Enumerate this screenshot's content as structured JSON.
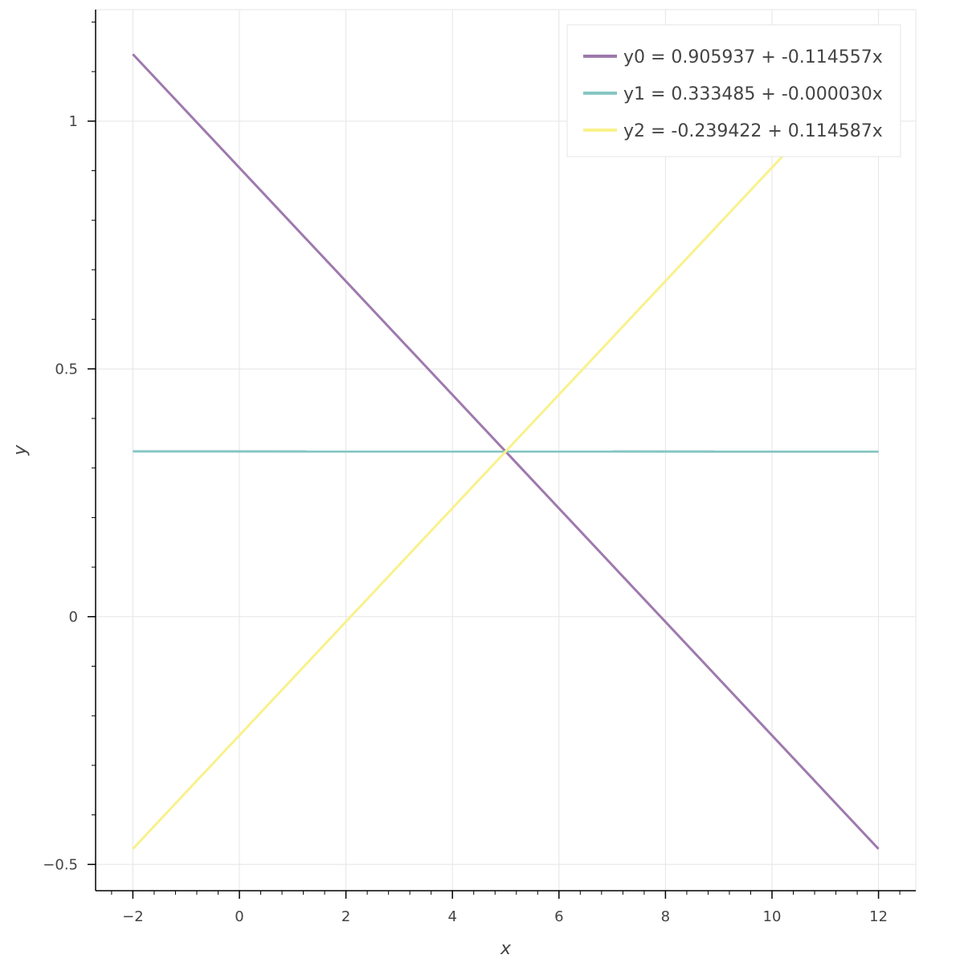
{
  "chart_data": {
    "type": "line",
    "title": "",
    "xlabel": "x",
    "ylabel": "y",
    "xlim": [
      -2.7,
      12.7
    ],
    "ylim": [
      -0.553,
      1.225
    ],
    "grid": true,
    "legend_position": "top-right",
    "x_ticks": [
      {
        "value": -2,
        "label": "−2"
      },
      {
        "value": 0,
        "label": "0"
      },
      {
        "value": 2,
        "label": "2"
      },
      {
        "value": 4,
        "label": "4"
      },
      {
        "value": 6,
        "label": "6"
      },
      {
        "value": 8,
        "label": "8"
      },
      {
        "value": 10,
        "label": "10"
      },
      {
        "value": 12,
        "label": "12"
      }
    ],
    "y_ticks": [
      {
        "value": -0.5,
        "label": "−0.5"
      },
      {
        "value": 0,
        "label": "0"
      },
      {
        "value": 0.5,
        "label": "0.5"
      },
      {
        "value": 1,
        "label": "1"
      }
    ],
    "x_minor_step": 0.4,
    "y_minor_step": 0.1,
    "series": [
      {
        "name": "y0 = 0.905937 + -0.114557x",
        "color": "#9e79ad",
        "x": [
          -2,
          12
        ],
        "y": [
          1.135051,
          -0.468747
        ]
      },
      {
        "name": "y1 = 0.333485 + -0.000030x",
        "color": "#86c6c3",
        "x": [
          -2,
          12
        ],
        "y": [
          0.333545,
          0.333125
        ]
      },
      {
        "name": "y2 = -0.239422 + 0.114587x",
        "color": "#f9f18c",
        "x": [
          -2,
          12
        ],
        "y": [
          -0.468596,
          1.135622
        ]
      }
    ]
  }
}
